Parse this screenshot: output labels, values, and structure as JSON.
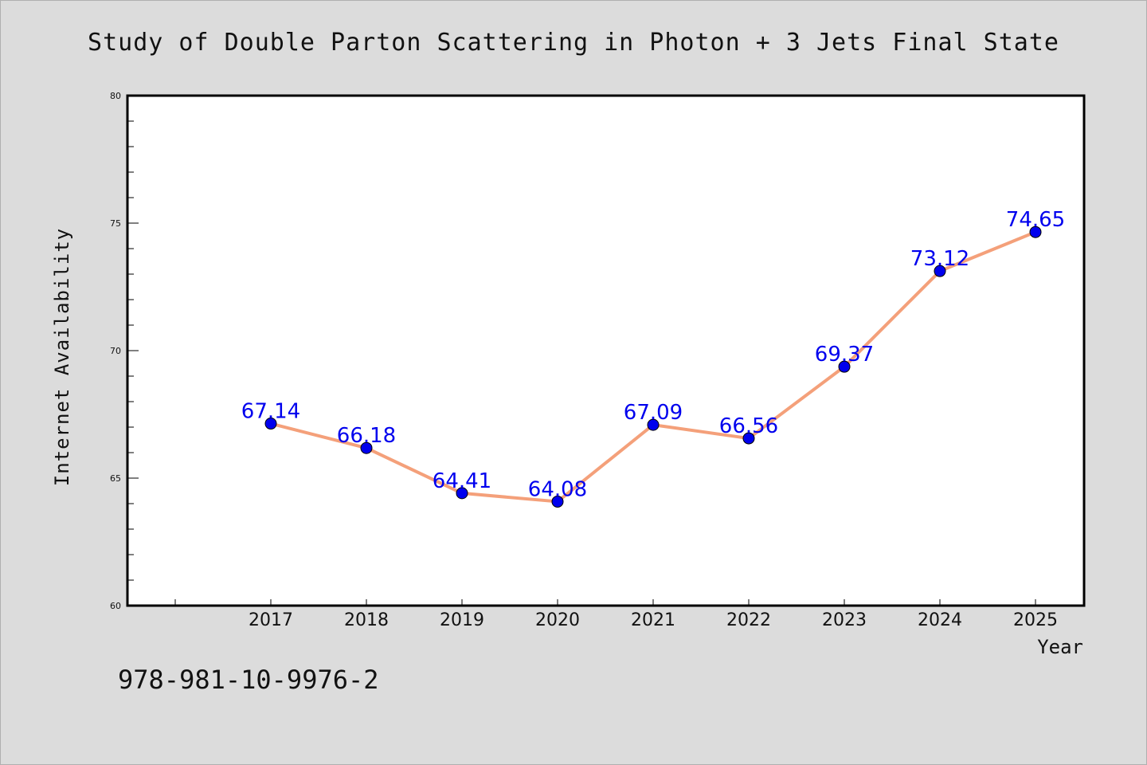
{
  "chart_data": {
    "type": "line",
    "title": "Study of Double Parton Scattering in Photon + 3 Jets Final State",
    "xlabel": "Year",
    "ylabel": "Internet Availability",
    "categories": [
      "2017",
      "2018",
      "2019",
      "2020",
      "2021",
      "2022",
      "2023",
      "2024",
      "2025"
    ],
    "series": [
      {
        "values": [
          67.14,
          66.18,
          64.41,
          64.08,
          67.09,
          66.56,
          69.37,
          73.12,
          74.65
        ],
        "data_labels": [
          "67.14",
          "66.18",
          "64.41",
          "64.08",
          "67.09",
          "66.56",
          "69.37",
          "73.12",
          "74.65"
        ],
        "line_color": "#f4a07a",
        "marker_color": "#0000ee",
        "label_color": "#0000ee"
      }
    ],
    "ylim": [
      60,
      80
    ],
    "yticks": [
      "60",
      "65",
      "70",
      "75",
      "80"
    ],
    "grid": false,
    "legend": "none"
  },
  "footer": {
    "isbn": "978-981-10-9976-2"
  }
}
